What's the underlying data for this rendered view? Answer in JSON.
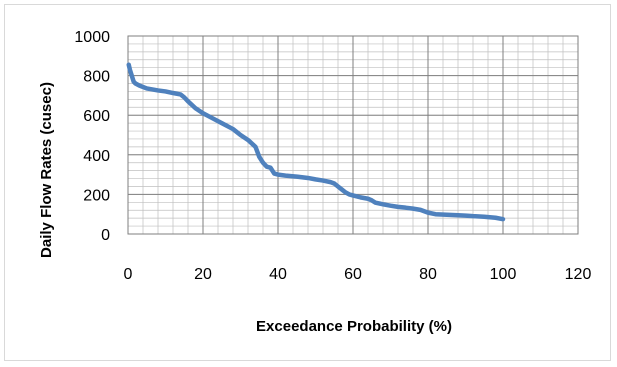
{
  "chart_data": {
    "type": "line",
    "xlabel": "Exceedance Probability (%)",
    "ylabel": "Daily Flow Rates  (cusec)",
    "xlim": [
      0,
      120
    ],
    "ylim": [
      0,
      1000
    ],
    "x_ticks": [
      0,
      20,
      40,
      60,
      80,
      100,
      120
    ],
    "y_ticks": [
      0,
      200,
      400,
      600,
      800,
      1000
    ],
    "x_minor_step": 4,
    "y_minor_step": 40,
    "grid": true,
    "legend": "none",
    "series_color": "#4f81bd",
    "series": [
      {
        "x": [
          0.2,
          0.5,
          1,
          1.5,
          2,
          3,
          5,
          8,
          10,
          12,
          14,
          15,
          16,
          18,
          20,
          22,
          25,
          28,
          30,
          32,
          34,
          35,
          36,
          37,
          38,
          39,
          40,
          42,
          45,
          48,
          50,
          52,
          54,
          55,
          56,
          57,
          58,
          59,
          60,
          62,
          64,
          65,
          66,
          68,
          70,
          72,
          74,
          76,
          78,
          80,
          82,
          85,
          88,
          90,
          92,
          95,
          98,
          100
        ],
        "y": [
          855,
          830,
          800,
          770,
          760,
          750,
          735,
          725,
          720,
          712,
          705,
          690,
          670,
          635,
          610,
          590,
          560,
          530,
          500,
          475,
          440,
          390,
          360,
          340,
          335,
          305,
          300,
          295,
          290,
          283,
          276,
          270,
          262,
          255,
          240,
          225,
          210,
          200,
          195,
          185,
          178,
          170,
          158,
          150,
          143,
          137,
          133,
          128,
          122,
          108,
          100,
          97,
          95,
          93,
          90,
          87,
          82,
          75
        ]
      }
    ]
  }
}
